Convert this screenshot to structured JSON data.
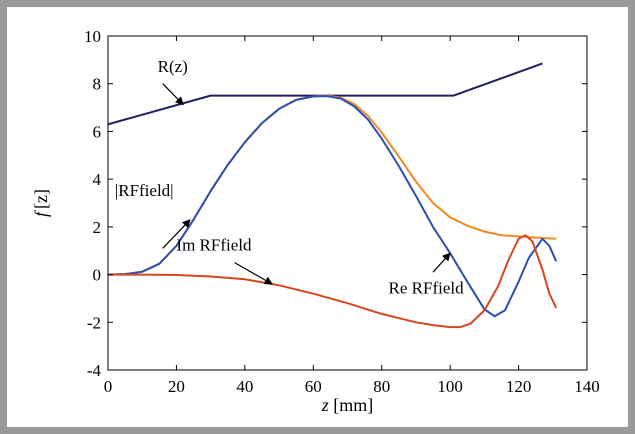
{
  "chart_data": {
    "type": "line",
    "title": "",
    "xlabel": {
      "var": "z",
      "unit": " [mm]"
    },
    "ylabel": {
      "var": "f",
      "arg": "[z]"
    },
    "xlim": [
      0,
      140
    ],
    "ylim": [
      -4,
      10
    ],
    "xticks": [
      "0",
      "20",
      "40",
      "60",
      "80",
      "100",
      "120",
      "140"
    ],
    "yticks": [
      "-4",
      "-2",
      "0",
      "2",
      "4",
      "6",
      "8",
      "10"
    ],
    "grid": false,
    "legend": "none",
    "series": [
      {
        "name": "R(z)",
        "color": "#1f1f5c",
        "x": [
          0,
          30,
          101,
          127
        ],
        "y": [
          6.3,
          7.5,
          7.5,
          8.85
        ]
      },
      {
        "name": "|RFfield|",
        "color": "#f08a24",
        "x": [
          0,
          5,
          10,
          15,
          20,
          25,
          30,
          35,
          40,
          45,
          50,
          55,
          60,
          64,
          68,
          72,
          76,
          80,
          85,
          90,
          95,
          100,
          105,
          110,
          115,
          120,
          125,
          131
        ],
        "y": [
          0,
          0.02,
          0.12,
          0.45,
          1.2,
          2.3,
          3.5,
          4.6,
          5.55,
          6.35,
          6.95,
          7.32,
          7.47,
          7.5,
          7.42,
          7.15,
          6.65,
          5.95,
          4.95,
          3.9,
          3.0,
          2.4,
          2.05,
          1.8,
          1.65,
          1.6,
          1.55,
          1.5
        ]
      },
      {
        "name": "Re RFfield",
        "color": "#2b4fb0",
        "x": [
          0,
          5,
          10,
          15,
          20,
          25,
          30,
          35,
          40,
          45,
          50,
          55,
          60,
          64,
          68,
          72,
          76,
          80,
          85,
          90,
          95,
          100,
          105,
          110,
          113,
          116,
          120,
          123,
          127,
          129,
          131
        ],
        "y": [
          0,
          0.02,
          0.12,
          0.45,
          1.2,
          2.3,
          3.5,
          4.6,
          5.55,
          6.35,
          6.95,
          7.32,
          7.47,
          7.48,
          7.38,
          7.05,
          6.5,
          5.7,
          4.55,
          3.3,
          2.0,
          0.9,
          -0.3,
          -1.45,
          -1.75,
          -1.5,
          -0.3,
          0.7,
          1.5,
          1.2,
          0.55
        ]
      },
      {
        "name": "Im RFfield",
        "color": "#d9461e",
        "x": [
          0,
          10,
          20,
          30,
          40,
          50,
          60,
          70,
          80,
          90,
          95,
          100,
          103,
          106,
          110,
          114,
          117,
          120,
          122,
          124,
          127,
          129,
          131
        ],
        "y": [
          0,
          0,
          -0.02,
          -0.08,
          -0.2,
          -0.45,
          -0.8,
          -1.2,
          -1.65,
          -2.0,
          -2.12,
          -2.2,
          -2.2,
          -2.05,
          -1.5,
          -0.5,
          0.6,
          1.5,
          1.65,
          1.4,
          0.2,
          -0.8,
          -1.4
        ]
      }
    ],
    "annotations": [
      {
        "text": "R(z)",
        "label_x": 14.5,
        "label_y": 8.5,
        "arrow_from": [
          16,
          8.0
        ],
        "arrow_to": [
          22,
          7.12
        ]
      },
      {
        "text": "|RFfield|",
        "label_x": 2,
        "label_y": 3.3,
        "arrow_from": [
          16,
          1.1
        ],
        "arrow_to": [
          24,
          2.3
        ]
      },
      {
        "text": "Im RFfield",
        "label_x": 20,
        "label_y": 1.0,
        "arrow_from": [
          37,
          0.5
        ],
        "arrow_to": [
          48,
          -0.4
        ]
      },
      {
        "text": "Re RFfield",
        "label_x": 82,
        "label_y": -0.8,
        "arrow_from": [
          95,
          0.1
        ],
        "arrow_to": [
          100,
          0.9
        ]
      }
    ]
  }
}
